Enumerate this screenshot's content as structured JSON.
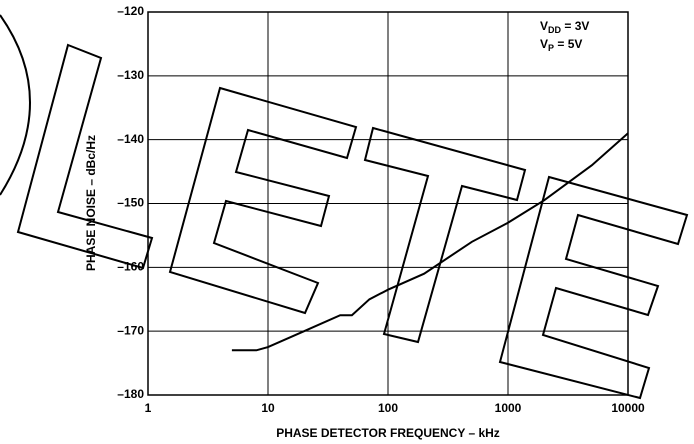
{
  "chart_data": {
    "type": "line",
    "xlabel": "PHASE DETECTOR FREQUENCY – kHz",
    "ylabel": "PHASE NOISE – dBc/Hz",
    "annotations": [
      {
        "base": "V",
        "sub": "DD",
        "rest": " = 3V"
      },
      {
        "base": "V",
        "sub": "P",
        "rest": " = 5V"
      }
    ],
    "x": [
      5,
      8,
      10,
      20,
      40,
      50,
      70,
      100,
      200,
      500,
      1000,
      2000,
      5000,
      10000
    ],
    "series": [
      {
        "color": "#000000",
        "values": [
          -173,
          -173,
          -172.5,
          -170,
          -167.5,
          -167.5,
          -165,
          -163.5,
          -161,
          -156,
          -153,
          -149.5,
          -144,
          -139
        ]
      }
    ],
    "xlim": [
      1,
      10000
    ],
    "xticks": [
      1,
      10,
      100,
      1000,
      10000
    ],
    "xscale": "log",
    "ylim": [
      -180,
      -120
    ],
    "yticks": [
      {
        "value": -180,
        "label": "–180"
      },
      {
        "value": -170,
        "label": "–170"
      },
      {
        "value": -160,
        "label": "–160"
      },
      {
        "value": -150,
        "label": "–150"
      },
      {
        "value": -140,
        "label": "–140"
      },
      {
        "value": -130,
        "label": "–130"
      },
      {
        "value": -120,
        "label": "–120"
      }
    ],
    "grid": true
  }
}
